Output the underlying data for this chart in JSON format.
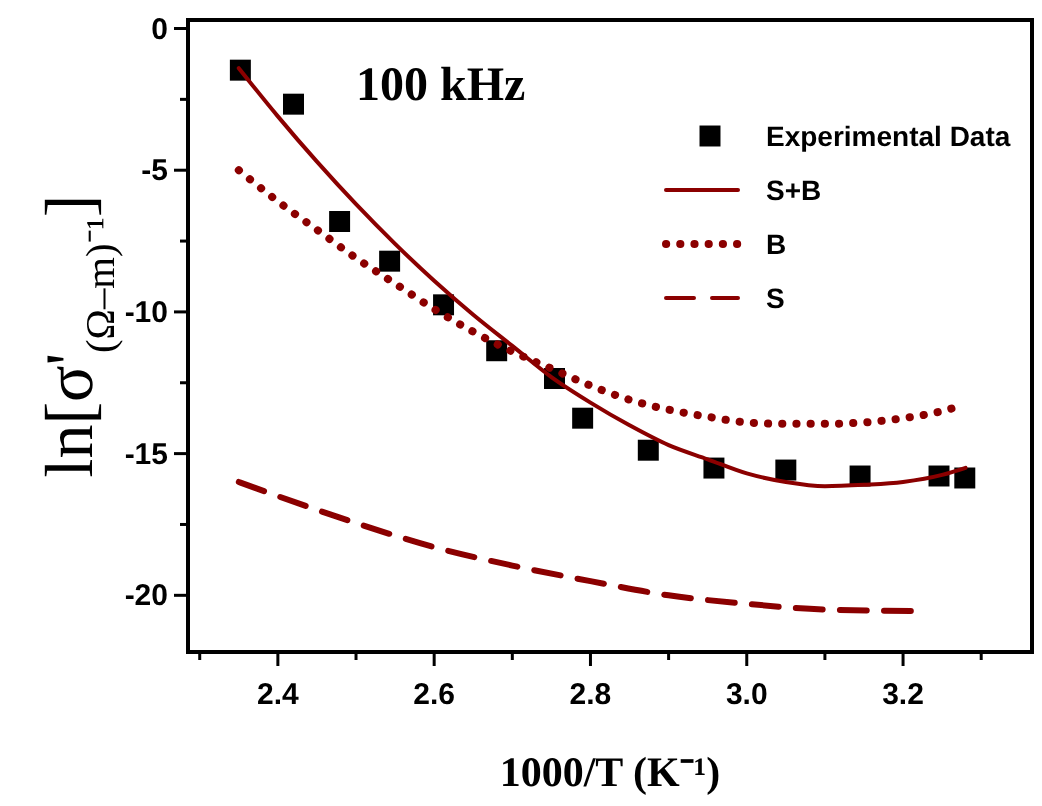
{
  "chart_data": {
    "type": "line",
    "title": "100 kHz",
    "xlabel": "1000/T (K⁻¹)",
    "ylabel": "ln[σ'$_{(Ω–m)⁻¹}$]",
    "xlim": [
      2.285,
      3.365
    ],
    "ylim": [
      -22,
      0.3
    ],
    "xticks": [
      {
        "value": 2.3,
        "label": null
      },
      2.4,
      {
        "value": 2.5,
        "label": null
      },
      2.6,
      {
        "value": 2.7,
        "label": null
      },
      2.8,
      {
        "value": 2.9,
        "label": null
      },
      {
        "value": 3.0,
        "label": "3.0"
      },
      {
        "value": 3.1,
        "label": null
      },
      3.2,
      {
        "value": 3.3,
        "label": null
      }
    ],
    "yticks": [
      0,
      {
        "value": -2.5,
        "label": null
      },
      -5,
      {
        "value": -7.5,
        "label": null
      },
      -10,
      {
        "value": -12.5,
        "label": null
      },
      -15,
      {
        "value": -17.5,
        "label": null
      },
      -20
    ],
    "legend": "top right",
    "grid": false,
    "series": [
      {
        "name": "Experimental Data",
        "type": "scatter",
        "marker": "square",
        "color": "#000000",
        "x": [
          2.352,
          2.42,
          2.479,
          2.543,
          2.612,
          2.68,
          2.754,
          2.79,
          2.874,
          2.958,
          3.05,
          3.145,
          3.246,
          3.279
        ],
        "values": [
          -1.47,
          -2.67,
          -6.81,
          -8.21,
          -9.75,
          -11.37,
          -12.35,
          -13.75,
          -14.88,
          -15.51,
          -15.58,
          -15.79,
          -15.79,
          -15.86
        ]
      },
      {
        "name": "S+B",
        "type": "line",
        "line_style": "solid",
        "color": "#8b0000",
        "x": [
          2.35,
          2.4,
          2.45,
          2.5,
          2.55,
          2.6,
          2.65,
          2.7,
          2.75,
          2.8,
          2.85,
          2.9,
          2.95,
          3.0,
          3.05,
          3.1,
          3.15,
          3.2,
          3.25,
          3.28
        ],
        "values": [
          -1.4,
          -3.1,
          -4.7,
          -6.2,
          -7.6,
          -8.9,
          -10.1,
          -11.2,
          -12.3,
          -13.2,
          -14.0,
          -14.7,
          -15.2,
          -15.7,
          -16.0,
          -16.15,
          -16.1,
          -16.0,
          -15.75,
          -15.5
        ]
      },
      {
        "name": "B",
        "type": "line",
        "line_style": "dotted",
        "color": "#8b0000",
        "x": [
          2.35,
          2.4,
          2.45,
          2.5,
          2.55,
          2.6,
          2.65,
          2.7,
          2.75,
          2.8,
          2.85,
          2.9,
          2.95,
          3.0,
          3.05,
          3.1,
          3.15,
          3.2,
          3.25,
          3.275
        ],
        "values": [
          -5.0,
          -6.1,
          -7.1,
          -8.1,
          -9.0,
          -9.9,
          -10.7,
          -11.4,
          -12.0,
          -12.6,
          -13.1,
          -13.45,
          -13.7,
          -13.9,
          -13.95,
          -13.95,
          -13.9,
          -13.75,
          -13.5,
          -13.3
        ]
      },
      {
        "name": "S",
        "type": "line",
        "line_style": "dashed",
        "color": "#8b0000",
        "x": [
          2.35,
          2.4,
          2.5,
          2.6,
          2.7,
          2.8,
          2.9,
          3.0,
          3.1,
          3.21
        ],
        "values": [
          -16.0,
          -16.5,
          -17.45,
          -18.3,
          -18.95,
          -19.5,
          -20.0,
          -20.3,
          -20.5,
          -20.55
        ]
      }
    ]
  }
}
